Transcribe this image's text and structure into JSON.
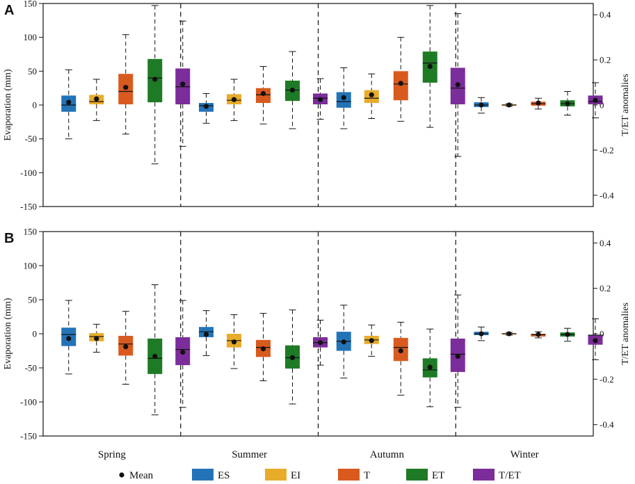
{
  "chart_data": {
    "type": "boxplot",
    "seasons": [
      "Spring",
      "Summer",
      "Autumn",
      "Winter"
    ],
    "series": [
      {
        "name": "ES",
        "color": "#2374b7"
      },
      {
        "name": "EI",
        "color": "#e8ac2b"
      },
      {
        "name": "T",
        "color": "#d95a1e"
      },
      {
        "name": "ET",
        "color": "#1e7b25"
      },
      {
        "name": "T/ET",
        "color": "#7b2d99"
      }
    ],
    "legend": {
      "mean_label": "Mean",
      "placement": "bottom"
    },
    "panels": [
      {
        "label": "A",
        "ylabel": "Evaporation (mm)",
        "y2label": "T/ET  anomalies",
        "ylim": [
          -150,
          150
        ],
        "yticks": [
          "150",
          "100",
          "50",
          "0",
          "-50",
          "-100",
          "-150"
        ],
        "y2lim": [
          -0.45,
          0.45
        ],
        "y2ticks": [
          "0.4",
          "0.2",
          "0",
          "-0.2",
          "-0.4"
        ],
        "boxes": [
          [
            {
              "min": -50,
              "q1": -10,
              "median": 0,
              "q3": 14,
              "max": 52,
              "mean": 4
            },
            {
              "min": -23,
              "q1": 1,
              "median": 5,
              "q3": 15,
              "max": 38,
              "mean": 9
            },
            {
              "min": -43,
              "q1": 1,
              "median": 20,
              "q3": 46,
              "max": 104,
              "mean": 26
            },
            {
              "min": -87,
              "q1": 4,
              "median": 40,
              "q3": 68,
              "max": 147,
              "mean": 38
            },
            {
              "min": -61,
              "q1": 1,
              "median": 27,
              "q3": 54,
              "max": 124,
              "mean": 31
            }
          ],
          [
            {
              "min": -27,
              "q1": -10,
              "median": -1,
              "q3": 3,
              "max": 17,
              "mean": -2
            },
            {
              "min": -23,
              "q1": 1,
              "median": 7,
              "q3": 16,
              "max": 38,
              "mean": 8
            },
            {
              "min": -28,
              "q1": 3,
              "median": 15,
              "q3": 25,
              "max": 57,
              "mean": 17
            },
            {
              "min": -35,
              "q1": 6,
              "median": 22,
              "q3": 36,
              "max": 79,
              "mean": 22
            },
            {
              "min": -21,
              "q1": 1,
              "median": 10,
              "q3": 17,
              "max": 39,
              "mean": 8
            }
          ],
          [
            {
              "min": -35,
              "q1": -4,
              "median": 5,
              "q3": 19,
              "max": 55,
              "mean": 11
            },
            {
              "min": -20,
              "q1": 3,
              "median": 10,
              "q3": 22,
              "max": 46,
              "mean": 15
            },
            {
              "min": -24,
              "q1": 7,
              "median": 31,
              "q3": 50,
              "max": 100,
              "mean": 32
            },
            {
              "min": -33,
              "q1": 33,
              "median": 62,
              "q3": 79,
              "max": 147,
              "mean": 57
            },
            {
              "min": -76,
              "q1": 1,
              "median": 25,
              "q3": 55,
              "max": 135,
              "mean": 30
            }
          ],
          [
            {
              "min": -12,
              "q1": -3,
              "median": 0,
              "q3": 4,
              "max": 11,
              "mean": 0
            },
            {
              "min": -2,
              "q1": -1,
              "median": 0,
              "q3": 1,
              "max": 2,
              "mean": 0
            },
            {
              "min": -6,
              "q1": -1,
              "median": 2,
              "q3": 5,
              "max": 10,
              "mean": 3
            },
            {
              "min": -15,
              "q1": -2,
              "median": 2,
              "q3": 7,
              "max": 20,
              "mean": 2
            },
            {
              "min": -19,
              "q1": 1,
              "median": 5,
              "q3": 14,
              "max": 33,
              "mean": 7
            }
          ]
        ]
      },
      {
        "label": "B",
        "ylabel": "Evaporation (mm)",
        "y2label": "T/ET  anomalies",
        "ylim": [
          -150,
          150
        ],
        "yticks": [
          "150",
          "100",
          "50",
          "0",
          "-50",
          "-100",
          "-150"
        ],
        "y2lim": [
          -0.45,
          0.45
        ],
        "y2ticks": [
          "0.4",
          "0.2",
          "0",
          "-0.2",
          "-0.4"
        ],
        "boxes": [
          [
            {
              "min": -59,
              "q1": -18,
              "median": -1,
              "q3": 9,
              "max": 49,
              "mean": -7
            },
            {
              "min": -27,
              "q1": -11,
              "median": -4,
              "q3": 1,
              "max": 14,
              "mean": -7
            },
            {
              "min": -74,
              "q1": -32,
              "median": -15,
              "q3": -3,
              "max": 33,
              "mean": -19
            },
            {
              "min": -119,
              "q1": -59,
              "median": -36,
              "q3": -7,
              "max": 72,
              "mean": -33
            },
            {
              "min": -108,
              "q1": -46,
              "median": -23,
              "q3": -5,
              "max": 49,
              "mean": -27
            }
          ],
          [
            {
              "min": -32,
              "q1": -5,
              "median": 3,
              "q3": 10,
              "max": 34,
              "mean": -1
            },
            {
              "min": -51,
              "q1": -20,
              "median": -10,
              "q3": 0,
              "max": 28,
              "mean": -12
            },
            {
              "min": -69,
              "q1": -34,
              "median": -20,
              "q3": -9,
              "max": 30,
              "mean": -22
            },
            {
              "min": -103,
              "q1": -51,
              "median": -35,
              "q3": -17,
              "max": 35,
              "mean": -35
            },
            {
              "min": -46,
              "q1": -20,
              "median": -13,
              "q3": -5,
              "max": 20,
              "mean": -13
            }
          ],
          [
            {
              "min": -65,
              "q1": -25,
              "median": -11,
              "q3": 3,
              "max": 42,
              "mean": -12
            },
            {
              "min": -33,
              "q1": -15,
              "median": -9,
              "q3": -3,
              "max": 13,
              "mean": -10
            },
            {
              "min": -90,
              "q1": -40,
              "median": -20,
              "q3": -6,
              "max": 17,
              "mean": -25
            },
            {
              "min": -107,
              "q1": -64,
              "median": -53,
              "q3": -36,
              "max": 7,
              "mean": -49
            },
            {
              "min": -108,
              "q1": -56,
              "median": -30,
              "q3": -7,
              "max": 57,
              "mean": -33
            }
          ],
          [
            {
              "min": -10,
              "q1": -2,
              "median": 0,
              "q3": 3,
              "max": 10,
              "mean": 0
            },
            {
              "min": -2,
              "q1": -1,
              "median": 0,
              "q3": 1,
              "max": 2,
              "mean": 0
            },
            {
              "min": -6,
              "q1": -4,
              "median": -1,
              "q3": 0,
              "max": 3,
              "mean": -1
            },
            {
              "min": -11,
              "q1": -4,
              "median": -1,
              "q3": 2,
              "max": 8,
              "mean": -1
            },
            {
              "min": -38,
              "q1": -16,
              "median": -2,
              "q3": -2,
              "max": 22,
              "mean": -10
            }
          ]
        ]
      }
    ]
  }
}
